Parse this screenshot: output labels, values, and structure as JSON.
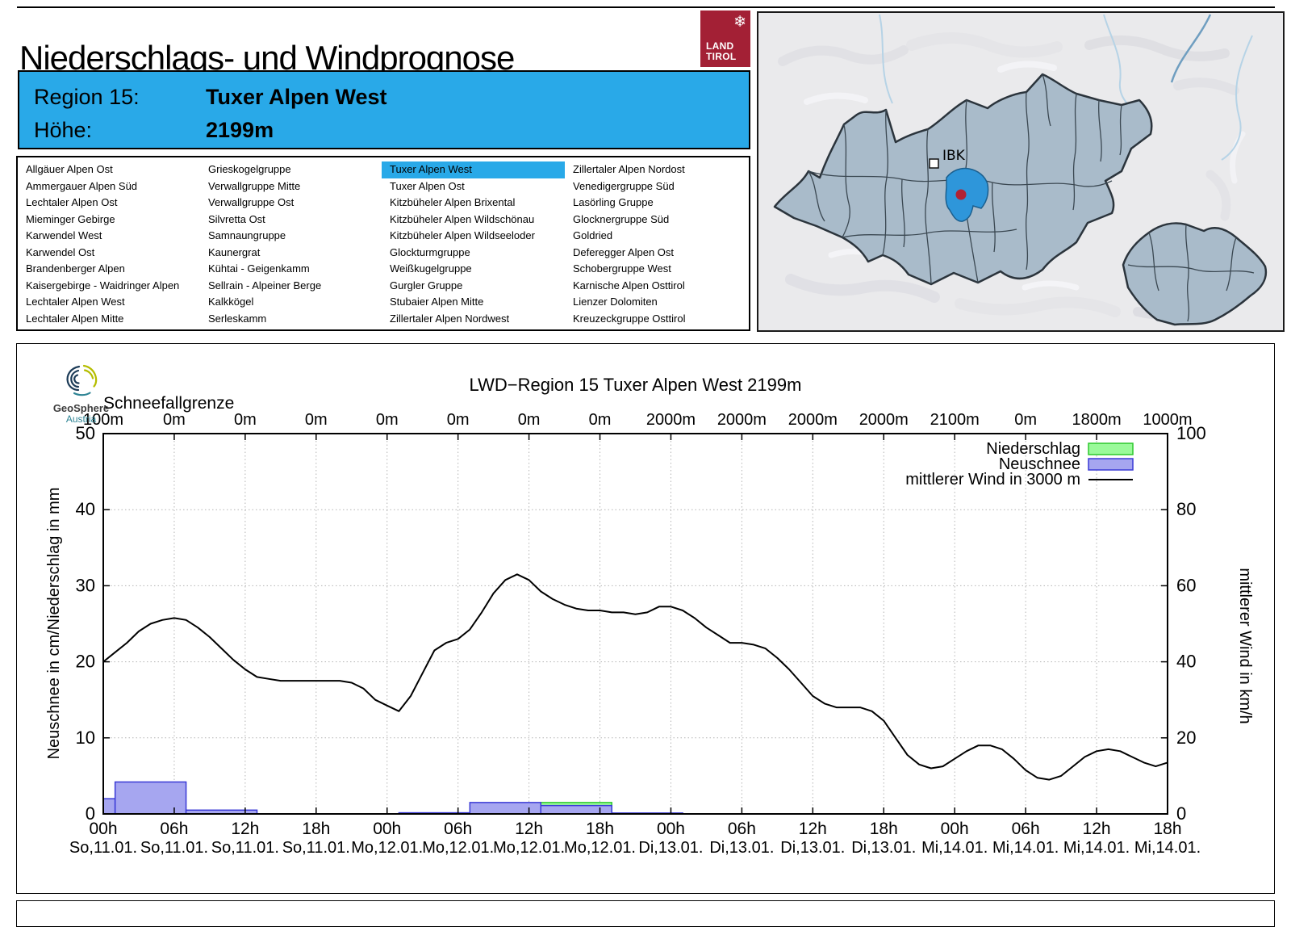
{
  "header": {
    "title": "Niederschlags- und Windprognose",
    "logo": {
      "line1": "LAND",
      "line2": "TIROL",
      "snowflake": "❄",
      "color": "#a32035"
    },
    "info_box": {
      "background": "#29a9e8",
      "region_label": "Region 15:",
      "region_value": "Tuxer Alpen West",
      "elevation_label": "Höhe:",
      "elevation_value": "2199m"
    }
  },
  "region_list": {
    "selected": "Tuxer Alpen West",
    "selected_background": "#29a9e8",
    "columns": [
      [
        "Allgäuer Alpen Ost",
        "Ammergauer Alpen Süd",
        "Lechtaler Alpen Ost",
        "Mieminger Gebirge",
        "Karwendel West",
        "Karwendel Ost",
        "Brandenberger Alpen",
        "Kaisergebirge - Waidringer Alpen",
        "Lechtaler Alpen West",
        "Lechtaler Alpen Mitte"
      ],
      [
        "Grieskogelgruppe",
        "Verwallgruppe Mitte",
        "Verwallgruppe Ost",
        "Silvretta Ost",
        "Samnaungruppe",
        "Kaunergrat",
        "Kühtai - Geigenkamm",
        "Sellrain - Alpeiner Berge",
        "Kalkkögel",
        "Serleskamm"
      ],
      [
        "Tuxer Alpen West",
        "Tuxer Alpen Ost",
        "Kitzbüheler Alpen Brixental",
        "Kitzbüheler Alpen Wildschönau",
        "Kitzbüheler Alpen Wildseeloder",
        "Glockturmgruppe",
        "Weißkugelgruppe",
        "Gurgler Gruppe",
        "Stubaier Alpen Mitte",
        "Zillertaler Alpen Nordwest"
      ],
      [
        "Zillertaler Alpen Nordost",
        "Venedigergruppe Süd",
        "Lasörling Gruppe",
        "Glocknergruppe Süd",
        "Goldried",
        "Deferegger Alpen Ost",
        "Schobergruppe West",
        "Karnische Alpen Osttirol",
        "Lienzer Dolomiten",
        "Kreuzeckgruppe Osttirol"
      ]
    ]
  },
  "map": {
    "marker_label": "IBK",
    "region_fill": "#a9bbca",
    "highlight_fill": "#2e96da",
    "marker_dot_color": "#b22233"
  },
  "chart_branding": {
    "name": "GeoSphere",
    "country": "Austria"
  },
  "chart_data": {
    "type": "bar",
    "title": "LWD−Region 15 Tuxer Alpen West 2199m",
    "top_axis": {
      "label": "Schneefallgrenze",
      "tick_labels": [
        "100m",
        "0m",
        "0m",
        "0m",
        "0m",
        "0m",
        "0m",
        "0m",
        "2000m",
        "2000m",
        "2000m",
        "2000m",
        "2100m",
        "0m",
        "1800m",
        "1000m"
      ]
    },
    "x_axis": {
      "hours_total": 90,
      "tick_interval_hours": 6,
      "tick_times": [
        "00h",
        "06h",
        "12h",
        "18h",
        "00h",
        "06h",
        "12h",
        "18h",
        "00h",
        "06h",
        "12h",
        "18h",
        "00h",
        "06h",
        "12h",
        "18h"
      ],
      "tick_dates": [
        "So,11.01.",
        "So,11.01.",
        "So,11.01.",
        "So,11.01.",
        "Mo,12.01.",
        "Mo,12.01.",
        "Mo,12.01.",
        "Mo,12.01.",
        "Di,13.01.",
        "Di,13.01.",
        "Di,13.01.",
        "Di,13.01.",
        "Mi,14.01.",
        "Mi,14.01.",
        "Mi,14.01.",
        "Mi,14.01."
      ]
    },
    "y_left": {
      "label": "Neuschnee in cm/Niederschlag in mm",
      "min": 0,
      "max": 50,
      "tick_step": 10
    },
    "y_right": {
      "label": "mittlerer Wind in km/h",
      "min": 0,
      "max": 100,
      "tick_step": 20
    },
    "grid": true,
    "legend_position": "top-right",
    "series": {
      "niederschlag_mm": {
        "label": "Niederschlag",
        "fill": "#9afa9a",
        "stroke": "#2dc82d",
        "bars": [
          {
            "start_hour": 37,
            "end_hour": 43,
            "value": 1.5
          }
        ]
      },
      "neuschnee_cm": {
        "label": "Neuschnee",
        "fill": "#a6a6f0",
        "stroke": "#3a3ad6",
        "bars": [
          {
            "start_hour": 0,
            "end_hour": 1,
            "value": 2.0
          },
          {
            "start_hour": 1,
            "end_hour": 7,
            "value": 4.2
          },
          {
            "start_hour": 7,
            "end_hour": 13,
            "value": 0.5
          },
          {
            "start_hour": 25,
            "end_hour": 31,
            "value": 0.15
          },
          {
            "start_hour": 31,
            "end_hour": 37,
            "value": 1.5
          },
          {
            "start_hour": 37,
            "end_hour": 43,
            "value": 1.1
          },
          {
            "start_hour": 43,
            "end_hour": 49,
            "value": 0.12
          }
        ]
      },
      "wind": {
        "label": "mittlerer Wind in 3000 m",
        "stroke": "#000000",
        "start_hour": 0,
        "step_hours": 1,
        "values_kmh": [
          40,
          42.5,
          45,
          48,
          50,
          51,
          51.5,
          51,
          49,
          46.5,
          43.5,
          40.5,
          38,
          36,
          35.5,
          35,
          35,
          35,
          35,
          35,
          35,
          34.5,
          33,
          30,
          28.5,
          27,
          31,
          37,
          43,
          45,
          46,
          48.5,
          53,
          58,
          61.5,
          63,
          61.5,
          58.5,
          56.5,
          55,
          54,
          53.5,
          53.5,
          53,
          53,
          52.5,
          53,
          54.5,
          54.5,
          53.5,
          51.5,
          49,
          47,
          45,
          45,
          44.5,
          43.5,
          41,
          38,
          34.5,
          31,
          29,
          28,
          28,
          28,
          27,
          24.5,
          20,
          15.5,
          13,
          12,
          12.5,
          14.5,
          16.5,
          18,
          18,
          17,
          14.5,
          11.5,
          9.5,
          9,
          10,
          12.5,
          15,
          16.5,
          17,
          16.5,
          15,
          13.5,
          12.5,
          13.5
        ]
      }
    }
  }
}
